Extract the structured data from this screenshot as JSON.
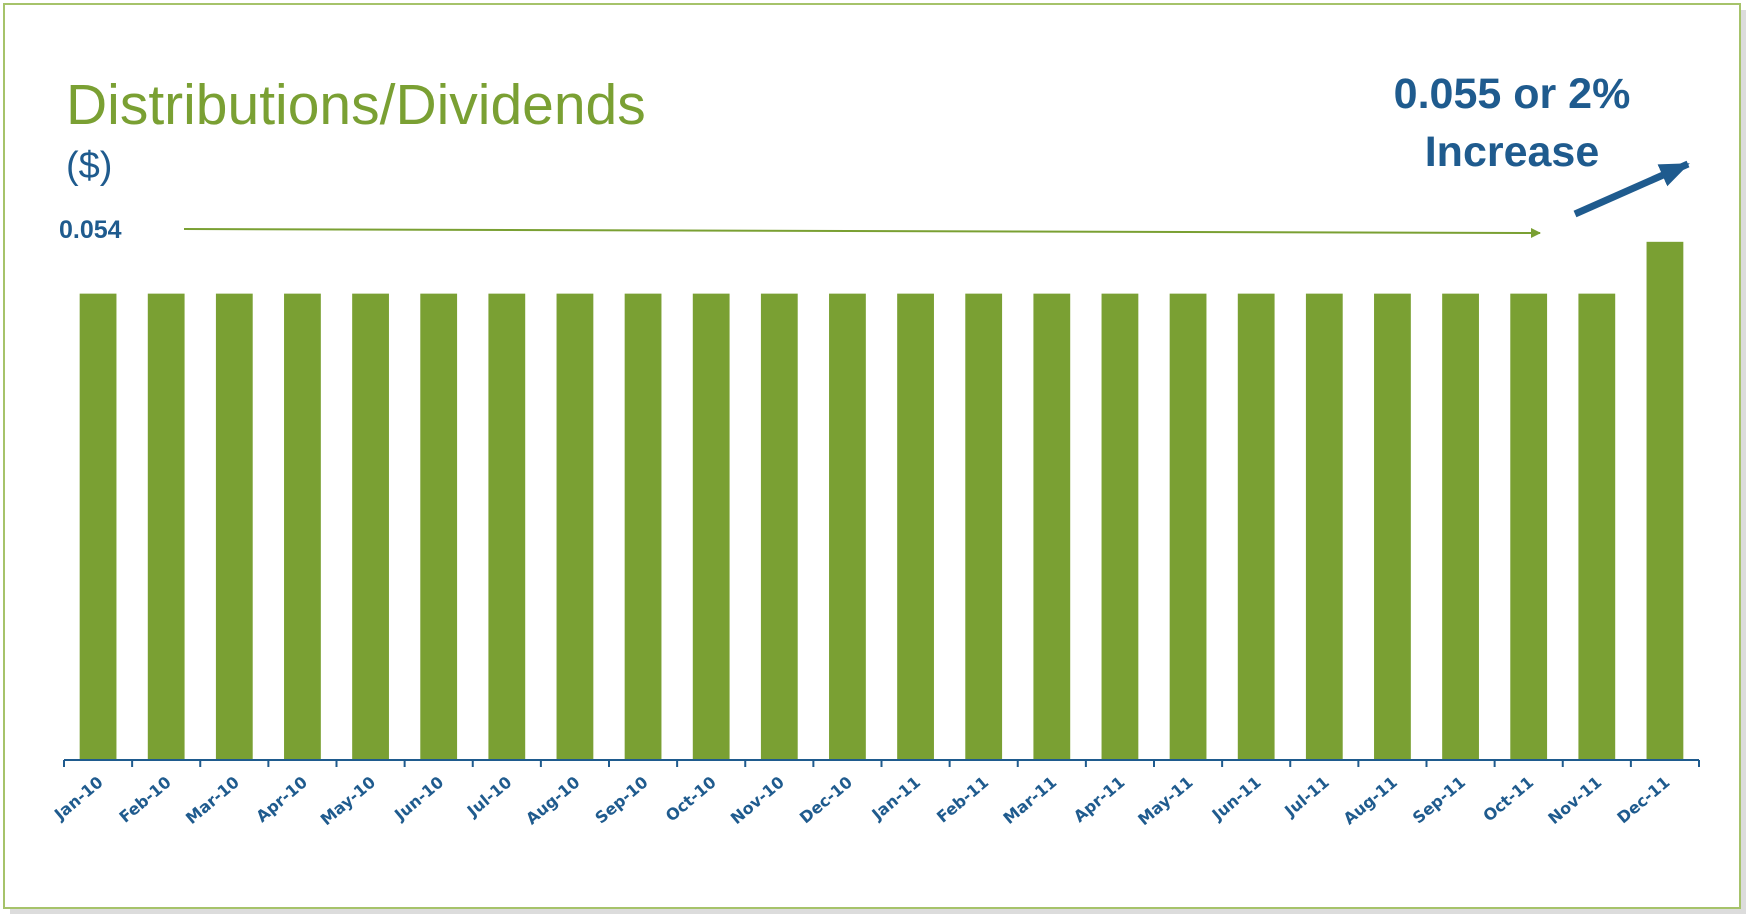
{
  "chart_data": {
    "type": "bar",
    "title": "Distributions/Dividends",
    "subtitle": "($)",
    "categories": [
      "Jan-10",
      "Feb-10",
      "Mar-10",
      "Apr-10",
      "May-10",
      "Jun-10",
      "Jul-10",
      "Aug-10",
      "Sep-10",
      "Oct-10",
      "Nov-10",
      "Dec-10",
      "Jan-11",
      "Feb-11",
      "Mar-11",
      "Apr-11",
      "May-11",
      "Jun-11",
      "Jul-11",
      "Aug-11",
      "Sep-11",
      "Oct-11",
      "Nov-11",
      "Dec-11"
    ],
    "values": [
      0.054,
      0.054,
      0.054,
      0.054,
      0.054,
      0.054,
      0.054,
      0.054,
      0.054,
      0.054,
      0.054,
      0.054,
      0.054,
      0.054,
      0.054,
      0.054,
      0.054,
      0.054,
      0.054,
      0.054,
      0.054,
      0.054,
      0.054,
      0.055
    ],
    "color": "#7aa033",
    "ylim": [
      0.045,
      0.056
    ],
    "annotations": [
      "0.054",
      "0.055 or 2%",
      "Increase"
    ]
  }
}
